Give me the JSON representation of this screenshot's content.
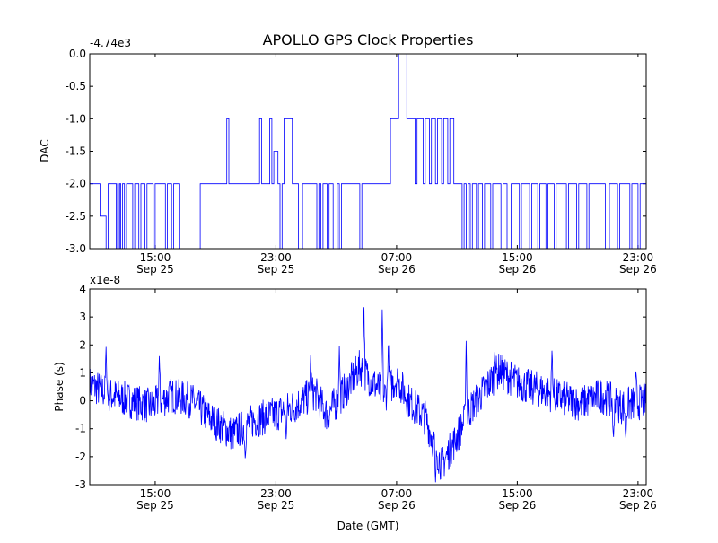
{
  "figure": {
    "title": "APOLLO GPS Clock Properties",
    "background": "#ffffff",
    "line_color": "#0000ff"
  },
  "chart_data": [
    {
      "type": "line",
      "name": "dac",
      "ylabel": "DAC",
      "y_offset_label": "-4.74e3",
      "ylim": [
        -3.0,
        0.0
      ],
      "yticks": [
        "0.0",
        "-0.5",
        "-1.0",
        "-1.5",
        "-2.0",
        "-2.5",
        "-3.0"
      ],
      "yticks_values": [
        0.0,
        -0.5,
        -1.0,
        -1.5,
        -2.0,
        -2.5,
        -3.0
      ],
      "xlim_hours": [
        11.0,
        24.6
      ],
      "xticks": [
        {
          "time": "15:00",
          "date": "Sep 25"
        },
        {
          "time": "23:00",
          "date": "Sep 25"
        },
        {
          "time": "07:00",
          "date": "Sep 26"
        },
        {
          "time": "15:00",
          "date": "Sep 26"
        },
        {
          "time": "23:00",
          "date": "Sep 26"
        }
      ],
      "segments": [
        [
          11.0,
          -2.0
        ],
        [
          11.25,
          -2.5
        ],
        [
          11.4,
          -3.0
        ],
        [
          11.45,
          -2.0
        ],
        [
          11.6,
          -2.0
        ],
        [
          11.65,
          -3.0
        ],
        [
          11.68,
          -2.0
        ],
        [
          11.7,
          -3.0
        ],
        [
          11.73,
          -2.0
        ],
        [
          11.76,
          -3.0
        ],
        [
          11.8,
          -2.0
        ],
        [
          11.85,
          -3.0
        ],
        [
          11.9,
          -2.0
        ],
        [
          12.05,
          -3.0
        ],
        [
          12.1,
          -2.0
        ],
        [
          12.2,
          -3.0
        ],
        [
          12.25,
          -2.0
        ],
        [
          12.35,
          -3.0
        ],
        [
          12.4,
          -2.0
        ],
        [
          12.55,
          -3.0
        ],
        [
          12.6,
          -2.0
        ],
        [
          12.8,
          -2.0
        ],
        [
          12.85,
          -3.0
        ],
        [
          12.9,
          -2.0
        ],
        [
          13.0,
          -3.0
        ],
        [
          13.05,
          -2.0
        ],
        [
          13.15,
          -2.0
        ],
        [
          13.2,
          -3.0
        ],
        [
          13.6,
          -3.0
        ],
        [
          13.7,
          -2.0
        ],
        [
          14.3,
          -2.0
        ],
        [
          14.35,
          -1.0
        ],
        [
          14.4,
          -2.0
        ],
        [
          15.1,
          -2.0
        ],
        [
          15.15,
          -1.0
        ],
        [
          15.2,
          -2.0
        ],
        [
          15.4,
          -1.0
        ],
        [
          15.45,
          -2.0
        ],
        [
          15.5,
          -1.5
        ],
        [
          15.6,
          -2.0
        ],
        [
          15.65,
          -3.0
        ],
        [
          15.7,
          -2.0
        ],
        [
          15.75,
          -1.0
        ],
        [
          15.9,
          -1.0
        ],
        [
          15.95,
          -2.0
        ],
        [
          16.05,
          -2.0
        ],
        [
          16.1,
          -3.0
        ],
        [
          16.2,
          -2.0
        ],
        [
          16.5,
          -2.0
        ],
        [
          16.55,
          -3.0
        ],
        [
          16.6,
          -2.0
        ],
        [
          16.65,
          -3.0
        ],
        [
          16.7,
          -2.0
        ],
        [
          16.8,
          -3.0
        ],
        [
          16.85,
          -2.0
        ],
        [
          16.95,
          -3.0
        ],
        [
          17.05,
          -2.0
        ],
        [
          17.1,
          -3.0
        ],
        [
          17.15,
          -2.0
        ],
        [
          17.5,
          -2.0
        ],
        [
          17.6,
          -3.0
        ],
        [
          17.65,
          -2.0
        ],
        [
          18.3,
          -2.0
        ],
        [
          18.35,
          -1.0
        ],
        [
          18.5,
          -1.0
        ],
        [
          18.55,
          0.0
        ],
        [
          18.7,
          0.0
        ],
        [
          18.75,
          -1.0
        ],
        [
          18.9,
          -1.0
        ],
        [
          18.95,
          -2.0
        ],
        [
          19.0,
          -1.0
        ],
        [
          19.1,
          -1.0
        ],
        [
          19.15,
          -2.0
        ],
        [
          19.2,
          -1.0
        ],
        [
          19.3,
          -2.0
        ],
        [
          19.35,
          -1.0
        ],
        [
          19.45,
          -2.0
        ],
        [
          19.5,
          -1.0
        ],
        [
          19.6,
          -2.0
        ],
        [
          19.65,
          -1.0
        ],
        [
          19.75,
          -2.0
        ],
        [
          19.8,
          -1.0
        ],
        [
          19.9,
          -2.0
        ],
        [
          20.05,
          -2.0
        ],
        [
          20.1,
          -3.0
        ],
        [
          20.15,
          -2.0
        ],
        [
          20.2,
          -3.0
        ],
        [
          20.25,
          -2.0
        ],
        [
          20.3,
          -3.0
        ],
        [
          20.35,
          -2.0
        ],
        [
          20.45,
          -3.0
        ],
        [
          20.5,
          -2.0
        ],
        [
          20.6,
          -3.0
        ],
        [
          20.65,
          -2.0
        ],
        [
          20.8,
          -3.0
        ],
        [
          20.85,
          -2.0
        ],
        [
          21.0,
          -2.0
        ],
        [
          21.05,
          -3.0
        ],
        [
          21.1,
          -2.0
        ],
        [
          21.2,
          -3.0
        ],
        [
          21.3,
          -2.0
        ],
        [
          21.45,
          -2.0
        ],
        [
          21.5,
          -3.0
        ],
        [
          21.55,
          -2.0
        ],
        [
          21.75,
          -3.0
        ],
        [
          21.8,
          -2.0
        ],
        [
          21.95,
          -3.0
        ],
        [
          22.0,
          -2.0
        ],
        [
          22.1,
          -2.0
        ],
        [
          22.15,
          -3.0
        ],
        [
          22.2,
          -2.0
        ],
        [
          22.35,
          -3.0
        ],
        [
          22.4,
          -2.0
        ],
        [
          22.6,
          -2.0
        ],
        [
          22.65,
          -3.0
        ],
        [
          22.7,
          -2.0
        ],
        [
          22.9,
          -3.0
        ],
        [
          22.95,
          -2.0
        ],
        [
          23.15,
          -3.0
        ],
        [
          23.2,
          -2.0
        ],
        [
          23.55,
          -2.0
        ],
        [
          23.6,
          -3.0
        ],
        [
          23.7,
          -2.0
        ],
        [
          23.9,
          -3.0
        ],
        [
          23.95,
          -2.0
        ],
        [
          24.2,
          -3.0
        ],
        [
          24.25,
          -2.0
        ],
        [
          24.35,
          -2.0
        ],
        [
          24.4,
          -3.0
        ],
        [
          24.45,
          -2.0
        ],
        [
          24.6,
          -3.0
        ]
      ]
    },
    {
      "type": "line",
      "name": "phase",
      "ylabel": "Phase (s)",
      "xlabel": "Date (GMT)",
      "y_offset_label": "x1e-8",
      "ylim": [
        -3,
        4
      ],
      "yticks": [
        "4",
        "3",
        "2",
        "1",
        "0",
        "-1",
        "-2",
        "-3"
      ],
      "yticks_values": [
        4,
        3,
        2,
        1,
        0,
        -1,
        -2,
        -3
      ],
      "xlim_hours": [
        11.0,
        24.6
      ],
      "xticks": [
        {
          "time": "15:00",
          "date": "Sep 25"
        },
        {
          "time": "23:00",
          "date": "Sep 25"
        },
        {
          "time": "07:00",
          "date": "Sep 26"
        },
        {
          "time": "15:00",
          "date": "Sep 26"
        },
        {
          "time": "23:00",
          "date": "Sep 26"
        }
      ],
      "trend": [
        [
          11.0,
          0.6
        ],
        [
          11.5,
          0.2
        ],
        [
          12.0,
          0.0
        ],
        [
          12.5,
          -0.2
        ],
        [
          13.0,
          0.2
        ],
        [
          13.5,
          0.0
        ],
        [
          14.0,
          -0.7
        ],
        [
          14.5,
          -1.2
        ],
        [
          15.0,
          -0.7
        ],
        [
          15.5,
          -0.5
        ],
        [
          16.0,
          -0.2
        ],
        [
          16.5,
          0.3
        ],
        [
          16.8,
          -0.5
        ],
        [
          17.3,
          0.5
        ],
        [
          17.6,
          1.2
        ],
        [
          17.9,
          0.7
        ],
        [
          18.2,
          0.2
        ],
        [
          18.5,
          0.8
        ],
        [
          18.8,
          0.0
        ],
        [
          19.2,
          -0.6
        ],
        [
          19.6,
          -2.3
        ],
        [
          19.9,
          -1.5
        ],
        [
          20.3,
          -0.3
        ],
        [
          20.6,
          0.3
        ],
        [
          21.0,
          1.1
        ],
        [
          21.5,
          0.6
        ],
        [
          22.0,
          0.4
        ],
        [
          22.5,
          0.1
        ],
        [
          23.0,
          -0.1
        ],
        [
          23.5,
          0.2
        ],
        [
          24.0,
          -0.2
        ],
        [
          24.6,
          0.0
        ]
      ],
      "spikes": [
        [
          11.4,
          2.0
        ],
        [
          12.7,
          1.6
        ],
        [
          14.8,
          -2.1
        ],
        [
          15.8,
          -1.4
        ],
        [
          16.4,
          1.7
        ],
        [
          17.1,
          2.0
        ],
        [
          17.7,
          3.6
        ],
        [
          18.15,
          3.3
        ],
        [
          18.3,
          2.2
        ],
        [
          19.45,
          -3.0
        ],
        [
          20.2,
          2.2
        ],
        [
          20.9,
          1.8
        ],
        [
          22.3,
          1.9
        ],
        [
          23.8,
          -1.5
        ],
        [
          24.1,
          -1.5
        ],
        [
          24.35,
          1.1
        ]
      ]
    }
  ]
}
